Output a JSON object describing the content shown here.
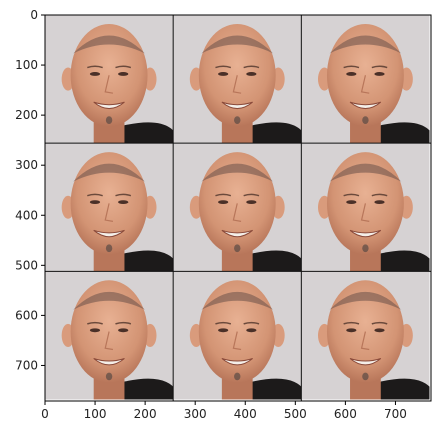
{
  "figure": {
    "image_grid": {
      "rows": 3,
      "cols": 3,
      "cell_size": 256,
      "description_tiles": "face-photo-tile"
    },
    "axes": {
      "xlim": [
        0,
        771
      ],
      "ylim": [
        771,
        0
      ],
      "x_ticks": [
        0,
        100,
        200,
        300,
        400,
        500,
        600,
        700
      ],
      "y_ticks": [
        0,
        100,
        200,
        300,
        400,
        500,
        600,
        700
      ],
      "grid_lines": [
        256,
        512
      ]
    },
    "colors": {
      "background": "#d6d2d3",
      "skin": "#d99b7c",
      "skin_shadow": "#b8765a",
      "shirt": "#1c1a1a",
      "frame": "#000000",
      "divider": "#111111"
    }
  }
}
